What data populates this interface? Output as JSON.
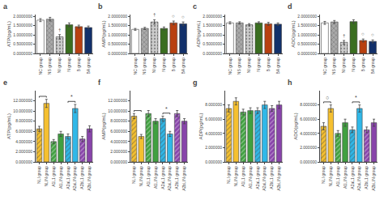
{
  "chart_data": [
    {
      "type": "bar",
      "title": "a",
      "ylabel": "ATP(pg/mL)",
      "categories": [
        "NC\ngroup",
        "NS\ngroup",
        "NI\ngroup",
        "N\ngroup",
        "B\ngroup",
        "BA\ngroup"
      ],
      "values": [
        1.8,
        1.85,
        0.9,
        1.55,
        1.45,
        1.4
      ],
      "errors": [
        0.08,
        0.1,
        0.12,
        0.1,
        0.08,
        0.08
      ],
      "colors": [
        "white",
        "#aaaaaa",
        "#cccccc",
        "#3a6e20",
        "#b84010",
        "#12306a"
      ],
      "ylim": [
        0,
        2.1
      ],
      "yticks": [
        {
          "value": 0.0,
          "label": "0.0000000"
        },
        {
          "value": 0.5,
          "label": "0.5000000"
        },
        {
          "value": 1.0,
          "label": "1.0000000"
        },
        {
          "value": 1.5,
          "label": "1.5000000"
        },
        {
          "value": 2.0,
          "label": "2.0000000"
        }
      ],
      "grid": false,
      "annotations": [
        {
          "x": 2,
          "text": "†"
        }
      ]
    },
    {
      "type": "bar",
      "title": "b",
      "ylabel": "AMP(pg/mL)",
      "categories": [
        "NC\ngroup",
        "NS\ngroup",
        "NI\ngroup",
        "N\ngroup",
        "B\ngroup",
        "BA\ngroup"
      ],
      "values": [
        1.3,
        1.35,
        1.7,
        1.35,
        1.65,
        1.6
      ],
      "errors": [
        0.05,
        0.06,
        0.12,
        0.08,
        0.1,
        0.1
      ],
      "colors": [
        "white",
        "#aaaaaa",
        "#cccccc",
        "#3a6e20",
        "#b84010",
        "#12306a"
      ],
      "ylim": [
        0,
        2.1
      ],
      "yticks": [
        {
          "value": 0.0,
          "label": "0.0000000"
        },
        {
          "value": 0.5,
          "label": "0.5000000"
        },
        {
          "value": 1.0,
          "label": "1.0000000"
        },
        {
          "value": 1.5,
          "label": "1.5000000"
        },
        {
          "value": 2.0,
          "label": "2.0000000"
        }
      ],
      "grid": false,
      "annotations": [
        {
          "x": 2,
          "text": "†"
        },
        {
          "x": 4,
          "text": "○"
        },
        {
          "x": 5,
          "text": "○"
        }
      ]
    },
    {
      "type": "bar",
      "title": "c",
      "ylabel": "ADP(pg/mL)",
      "categories": [
        "NC\ngroup",
        "NS\ngroup",
        "NI\ngroup",
        "N\ngroup",
        "B\ngroup",
        "BA\ngroup"
      ],
      "values": [
        1.65,
        1.65,
        1.55,
        1.65,
        1.6,
        1.58
      ],
      "errors": [
        0.06,
        0.06,
        0.06,
        0.06,
        0.08,
        0.07
      ],
      "colors": [
        "white",
        "#aaaaaa",
        "#cccccc",
        "#3a6e20",
        "#b84010",
        "#12306a"
      ],
      "ylim": [
        0,
        2.1
      ],
      "yticks": [
        {
          "value": 0.0,
          "label": "0.0000000"
        },
        {
          "value": 0.5,
          "label": "0.5000000"
        },
        {
          "value": 1.0,
          "label": "1.0000000"
        },
        {
          "value": 1.5,
          "label": "1.5000000"
        },
        {
          "value": 2.0,
          "label": "2.0000000"
        }
      ],
      "grid": false
    },
    {
      "type": "bar",
      "title": "d",
      "ylabel": "ADO(pg/mL)",
      "categories": [
        "NC\ngroup",
        "NS\ngroup",
        "NI\ngroup",
        "N\ngroup",
        "B\ngroup",
        "BA\ngroup"
      ],
      "values": [
        1.65,
        1.7,
        0.6,
        1.72,
        0.7,
        0.65
      ],
      "errors": [
        0.08,
        0.08,
        0.1,
        0.1,
        0.08,
        0.08
      ],
      "colors": [
        "white",
        "#aaaaaa",
        "#cccccc",
        "#3a6e20",
        "#b84010",
        "#12306a"
      ],
      "ylim": [
        0,
        2.1
      ],
      "yticks": [
        {
          "value": 0.0,
          "label": "0.0000000"
        },
        {
          "value": 0.5,
          "label": "0.5000000"
        },
        {
          "value": 1.0,
          "label": "1.0000000"
        },
        {
          "value": 1.5,
          "label": "1.5000000"
        },
        {
          "value": 2.0,
          "label": "2.0000000"
        }
      ],
      "grid": false,
      "annotations": [
        {
          "x": 2,
          "text": "†"
        },
        {
          "x": 4,
          "text": "○"
        },
        {
          "x": 5,
          "text": "○"
        }
      ]
    },
    {
      "type": "bar",
      "title": "e",
      "ylabel": "ATP(pg/mL)",
      "categories": [
        "NLI\ngroup",
        "NLIN\ngroup",
        "A1L1\ngroup",
        "A1LIN\ngroup",
        "A2aL1\ngroup",
        "A2aLIN\ngroup",
        "A2bL1\ngroup",
        "A2bLIN\ngroup"
      ],
      "values": [
        6.5,
        11.5,
        4.0,
        5.5,
        5.0,
        10.5,
        4.5,
        6.5
      ],
      "errors": [
        0.5,
        0.8,
        0.4,
        0.5,
        0.5,
        0.8,
        0.5,
        0.6
      ],
      "colors": [
        "#f5c030",
        "#f5c030",
        "#40a040",
        "#40a040",
        "#30b8e8",
        "#30b8e8",
        "#8844aa",
        "#8844aa"
      ],
      "ylim": [
        0,
        14.0
      ],
      "yticks": [
        {
          "value": 0,
          "label": "0.000000"
        },
        {
          "value": 2,
          "label": "2.000000"
        },
        {
          "value": 4,
          "label": "4.000000"
        },
        {
          "value": 6,
          "label": "6.000000"
        },
        {
          "value": 8,
          "label": "8.000000"
        },
        {
          "value": 10,
          "label": "10.000000"
        },
        {
          "value": 12,
          "label": "12.000000"
        }
      ],
      "grid": false,
      "brackets": [
        {
          "between": [
            0,
            1
          ]
        },
        {
          "between": [
            4,
            5
          ],
          "text": "*"
        }
      ]
    },
    {
      "type": "bar",
      "title": "f",
      "ylabel": "AMP(pg/mL)",
      "categories": [
        "NLI\ngroup",
        "NLIN\ngroup",
        "A1L1\ngroup",
        "A1LIN\ngroup",
        "A2aL1\ngroup",
        "A2aLIN\ngroup",
        "A2bL1\ngroup",
        "A2bLIN\ngroup"
      ],
      "values": [
        9.0,
        5.0,
        9.5,
        8.0,
        8.5,
        5.5,
        9.5,
        8.0
      ],
      "errors": [
        0.5,
        0.4,
        0.6,
        0.5,
        0.5,
        0.5,
        0.6,
        0.5
      ],
      "colors": [
        "#f5c030",
        "#f5c030",
        "#40a040",
        "#40a040",
        "#30b8e8",
        "#30b8e8",
        "#8844aa",
        "#8844aa"
      ],
      "ylim": [
        0,
        14.0
      ],
      "yticks": [
        {
          "value": 0,
          "label": "0.000000"
        },
        {
          "value": 2,
          "label": "2.000000"
        },
        {
          "value": 4,
          "label": "4.000000"
        },
        {
          "value": 6,
          "label": "6.000000"
        },
        {
          "value": 8,
          "label": "8.000000"
        },
        {
          "value": 10,
          "label": "10.000000"
        },
        {
          "value": 12,
          "label": "12.000000"
        }
      ],
      "grid": false,
      "brackets": [
        {
          "between": [
            0,
            1
          ]
        },
        {
          "between": [
            4,
            5
          ],
          "text": "*"
        }
      ]
    },
    {
      "type": "bar",
      "title": "g",
      "ylabel": "ADP(pg/mL)",
      "categories": [
        "NLI\ngroup",
        "NLIN\ngroup",
        "A1L1\ngroup",
        "A1LIN\ngroup",
        "A2aL1\ngroup",
        "A2aLIN\ngroup",
        "A2bL1\ngroup",
        "A2bLIN\ngroup"
      ],
      "values": [
        7.5,
        8.5,
        7.0,
        7.2,
        7.2,
        8.0,
        7.5,
        8.0
      ],
      "errors": [
        0.5,
        0.5,
        0.4,
        0.4,
        0.4,
        0.5,
        0.4,
        0.5
      ],
      "colors": [
        "#f5c030",
        "#f5c030",
        "#40a040",
        "#40a040",
        "#30b8e8",
        "#30b8e8",
        "#8844aa",
        "#8844aa"
      ],
      "ylim": [
        0,
        10.0
      ],
      "yticks": [
        {
          "value": 0,
          "label": "0.000000"
        },
        {
          "value": 2,
          "label": "2.000000"
        },
        {
          "value": 4,
          "label": "4.000000"
        },
        {
          "value": 6,
          "label": "6.000000"
        },
        {
          "value": 8,
          "label": "8.000000"
        }
      ],
      "grid": false
    },
    {
      "type": "bar",
      "title": "h",
      "ylabel": "ADO(pg/mL)",
      "categories": [
        "NLI\ngroup",
        "NLIN\ngroup",
        "A1L1\ngroup",
        "A1LIN\ngroup",
        "A2aL1\ngroup",
        "A2aLIN\ngroup",
        "A2bL1\ngroup",
        "A2bLIN\ngroup"
      ],
      "values": [
        5.0,
        7.5,
        4.0,
        5.5,
        4.5,
        7.5,
        4.5,
        5.5
      ],
      "errors": [
        0.5,
        0.5,
        0.4,
        0.5,
        0.4,
        0.5,
        0.4,
        0.5
      ],
      "colors": [
        "#f5c030",
        "#f5c030",
        "#40a040",
        "#40a040",
        "#30b8e8",
        "#30b8e8",
        "#8844aa",
        "#8844aa"
      ],
      "ylim": [
        0,
        10.0
      ],
      "yticks": [
        {
          "value": 0,
          "label": "0.000000"
        },
        {
          "value": 2,
          "label": "2.000000"
        },
        {
          "value": 4,
          "label": "4.000000"
        },
        {
          "value": 6,
          "label": "6.000000"
        },
        {
          "value": 8,
          "label": "8.000000"
        }
      ],
      "grid": false,
      "brackets": [
        {
          "between": [
            0,
            1
          ],
          "text": "○"
        },
        {
          "between": [
            4,
            5
          ],
          "text": "*"
        }
      ]
    }
  ]
}
